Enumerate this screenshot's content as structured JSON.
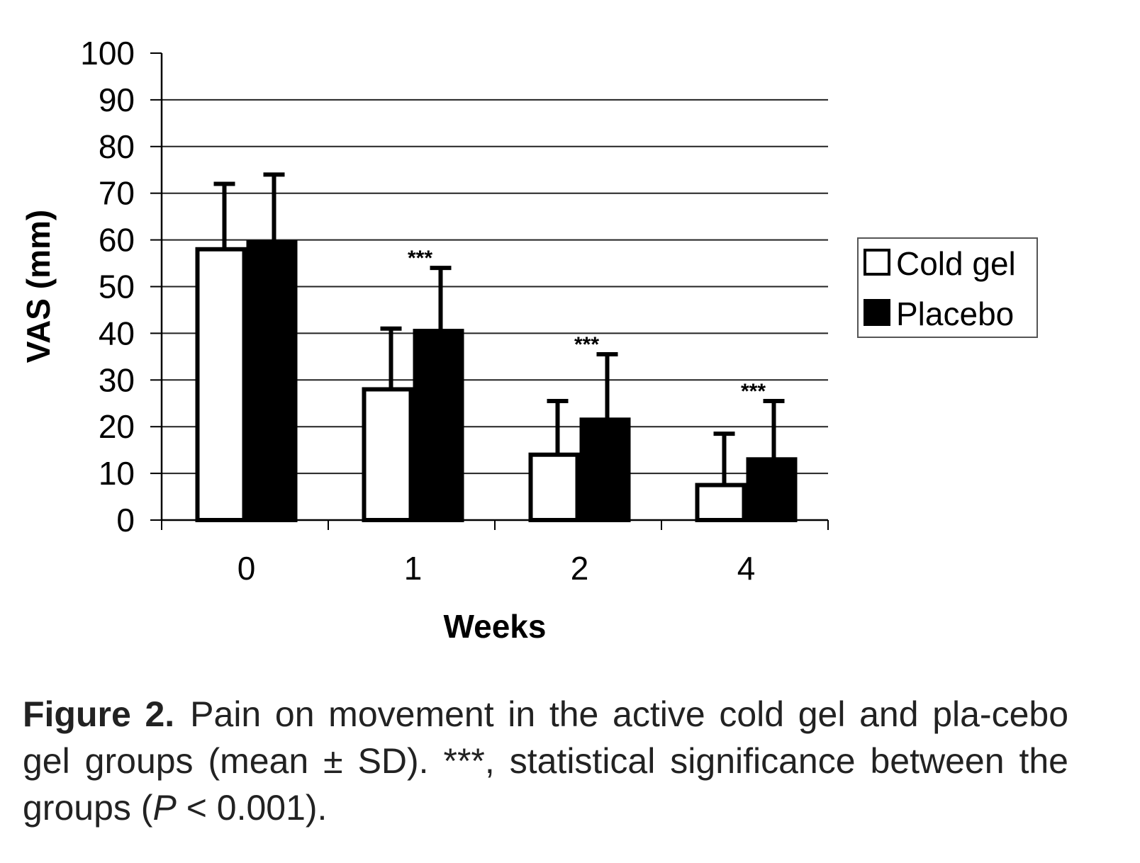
{
  "chart_data": {
    "type": "bar",
    "xlabel": "Weeks",
    "ylabel": "VAS (mm)",
    "categories": [
      "0",
      "1",
      "2",
      "4"
    ],
    "ylim": [
      0,
      100
    ],
    "yticks": [
      "0",
      "10",
      "20",
      "30",
      "40",
      "50",
      "60",
      "70",
      "80",
      "90",
      "100"
    ],
    "grid": "horizontal",
    "legend_position": "right",
    "series": [
      {
        "name": "Cold gel",
        "color": "#ffffff",
        "values": [
          58,
          28,
          14,
          7.5
        ],
        "sd": [
          14,
          13,
          11.5,
          11
        ]
      },
      {
        "name": "Placebo",
        "color": "#000000",
        "values": [
          59.5,
          40.5,
          21.5,
          13
        ],
        "sd": [
          14.5,
          13.5,
          14,
          12.5
        ]
      }
    ],
    "annotations": [
      {
        "category": "1",
        "text": "***"
      },
      {
        "category": "2",
        "text": "***"
      },
      {
        "category": "4",
        "text": "***"
      }
    ]
  },
  "caption": {
    "label": "Figure 2.",
    "text_before_p": "Pain on movement in the active cold gel and pla-cebo gel groups (mean ± SD). ***, statistical significance between the groups (",
    "p_symbol": "P",
    "text_after_p": " < 0.001)."
  }
}
